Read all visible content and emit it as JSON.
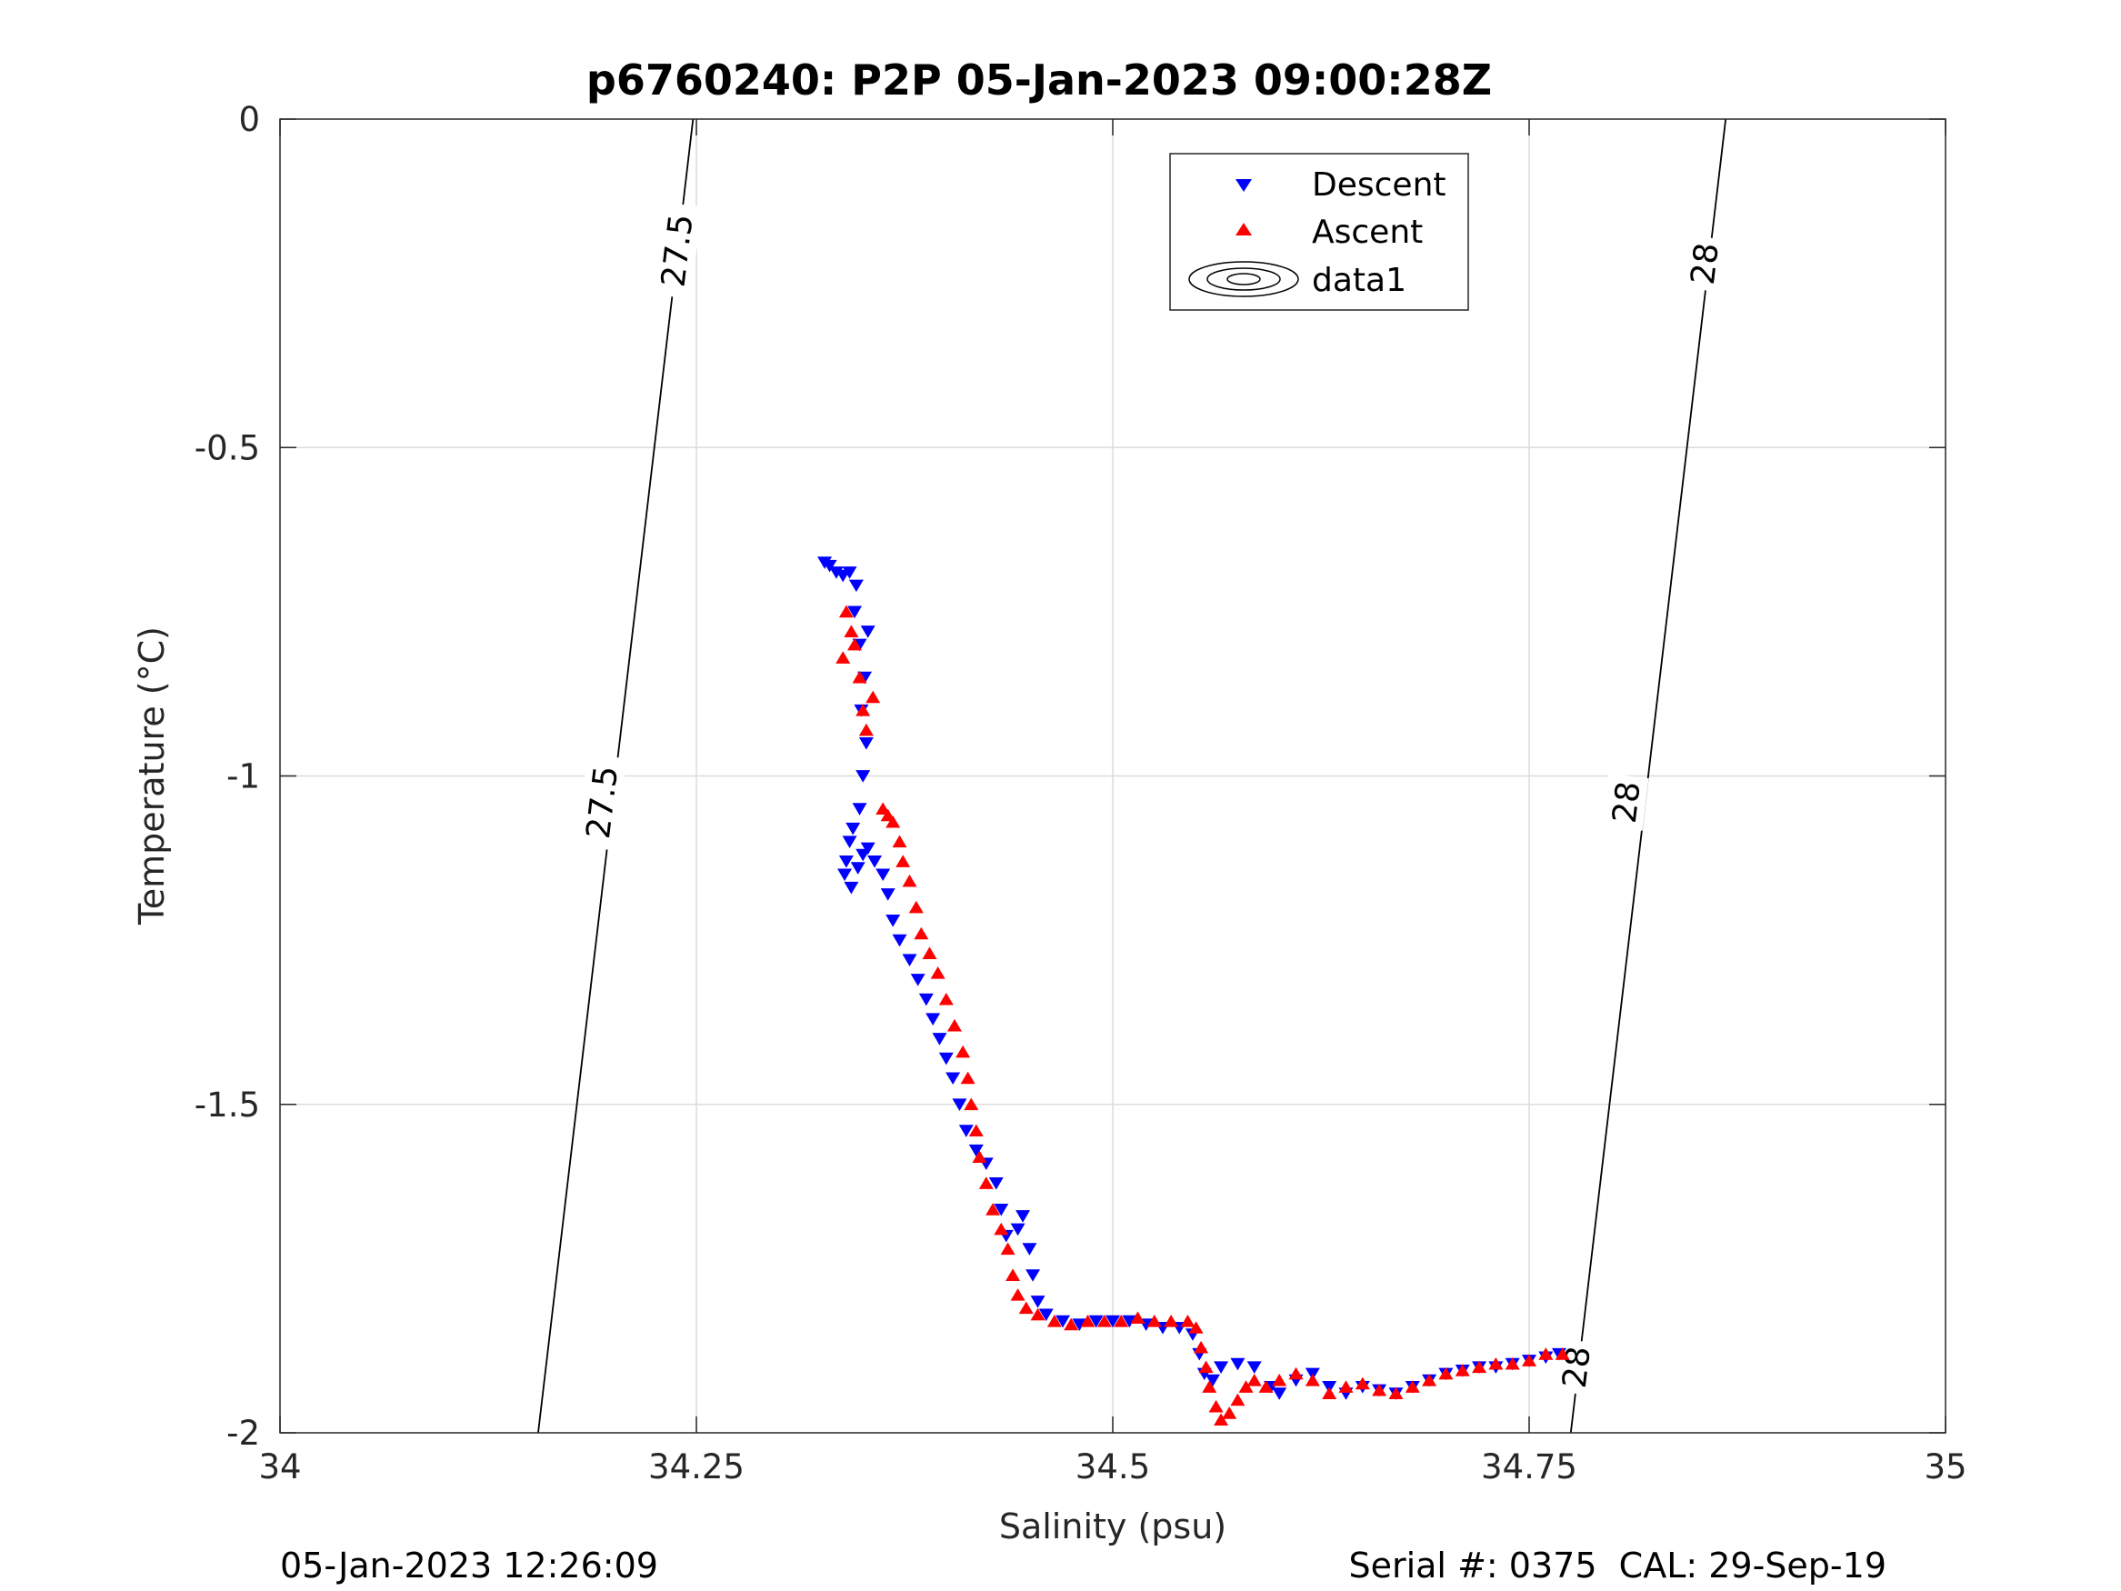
{
  "chart_data": {
    "type": "scatter",
    "title": "p6760240: P2P 05-Jan-2023 09:00:28Z",
    "xlabel": "Salinity (psu)",
    "ylabel": "Temperature (°C)",
    "xlim": [
      34,
      35
    ],
    "ylim": [
      -2,
      0
    ],
    "xticks": [
      34,
      34.25,
      34.5,
      34.75,
      35
    ],
    "xtick_labels": [
      "34",
      "34.25",
      "34.5",
      "34.75",
      "35"
    ],
    "yticks": [
      0,
      -0.5,
      -1,
      -1.5,
      -2
    ],
    "ytick_labels": [
      "0",
      "-0.5",
      "-1",
      "-1.5",
      "-2"
    ],
    "grid": true,
    "legend_position": "top-right",
    "legend": [
      "Descent",
      "Ascent",
      "data1"
    ],
    "series": [
      {
        "name": "Descent",
        "marker": "triangle-down",
        "color": "#0000ff",
        "points": [
          [
            34.327,
            -0.675
          ],
          [
            34.33,
            -0.68
          ],
          [
            34.334,
            -0.69
          ],
          [
            34.338,
            -0.695
          ],
          [
            34.342,
            -0.69
          ],
          [
            34.346,
            -0.71
          ],
          [
            34.345,
            -0.75
          ],
          [
            34.348,
            -0.8
          ],
          [
            34.353,
            -0.78
          ],
          [
            34.351,
            -0.85
          ],
          [
            34.349,
            -0.9
          ],
          [
            34.352,
            -0.95
          ],
          [
            34.35,
            -1.0
          ],
          [
            34.348,
            -1.05
          ],
          [
            34.344,
            -1.08
          ],
          [
            34.342,
            -1.1
          ],
          [
            34.34,
            -1.13
          ],
          [
            34.339,
            -1.15
          ],
          [
            34.343,
            -1.17
          ],
          [
            34.347,
            -1.14
          ],
          [
            34.35,
            -1.12
          ],
          [
            34.353,
            -1.11
          ],
          [
            34.357,
            -1.13
          ],
          [
            34.362,
            -1.15
          ],
          [
            34.365,
            -1.18
          ],
          [
            34.368,
            -1.22
          ],
          [
            34.372,
            -1.25
          ],
          [
            34.378,
            -1.28
          ],
          [
            34.383,
            -1.31
          ],
          [
            34.388,
            -1.34
          ],
          [
            34.392,
            -1.37
          ],
          [
            34.396,
            -1.4
          ],
          [
            34.4,
            -1.43
          ],
          [
            34.404,
            -1.46
          ],
          [
            34.408,
            -1.5
          ],
          [
            34.412,
            -1.54
          ],
          [
            34.418,
            -1.57
          ],
          [
            34.424,
            -1.59
          ],
          [
            34.43,
            -1.62
          ],
          [
            34.433,
            -1.66
          ],
          [
            34.436,
            -1.7
          ],
          [
            34.443,
            -1.69
          ],
          [
            34.446,
            -1.67
          ],
          [
            34.45,
            -1.72
          ],
          [
            34.452,
            -1.76
          ],
          [
            34.455,
            -1.8
          ],
          [
            34.46,
            -1.82
          ],
          [
            34.47,
            -1.83
          ],
          [
            34.48,
            -1.835
          ],
          [
            34.49,
            -1.83
          ],
          [
            34.5,
            -1.83
          ],
          [
            34.51,
            -1.83
          ],
          [
            34.52,
            -1.835
          ],
          [
            34.53,
            -1.84
          ],
          [
            34.54,
            -1.84
          ],
          [
            34.548,
            -1.85
          ],
          [
            34.552,
            -1.88
          ],
          [
            34.555,
            -1.91
          ],
          [
            34.56,
            -1.92
          ],
          [
            34.565,
            -1.9
          ],
          [
            34.575,
            -1.895
          ],
          [
            34.585,
            -1.9
          ],
          [
            34.595,
            -1.93
          ],
          [
            34.6,
            -1.94
          ],
          [
            34.61,
            -1.92
          ],
          [
            34.62,
            -1.91
          ],
          [
            34.63,
            -1.93
          ],
          [
            34.64,
            -1.94
          ],
          [
            34.65,
            -1.93
          ],
          [
            34.66,
            -1.935
          ],
          [
            34.67,
            -1.94
          ],
          [
            34.68,
            -1.93
          ],
          [
            34.69,
            -1.92
          ],
          [
            34.7,
            -1.91
          ],
          [
            34.71,
            -1.905
          ],
          [
            34.72,
            -1.9
          ],
          [
            34.73,
            -1.9
          ],
          [
            34.74,
            -1.895
          ],
          [
            34.75,
            -1.89
          ],
          [
            34.76,
            -1.885
          ],
          [
            34.768,
            -1.88
          ]
        ]
      },
      {
        "name": "Ascent",
        "marker": "triangle-up",
        "color": "#ff0000",
        "points": [
          [
            34.34,
            -0.75
          ],
          [
            34.343,
            -0.78
          ],
          [
            34.338,
            -0.82
          ],
          [
            34.345,
            -0.8
          ],
          [
            34.348,
            -0.85
          ],
          [
            34.35,
            -0.9
          ],
          [
            34.352,
            -0.93
          ],
          [
            34.356,
            -0.88
          ],
          [
            34.362,
            -1.05
          ],
          [
            34.365,
            -1.06
          ],
          [
            34.368,
            -1.07
          ],
          [
            34.372,
            -1.1
          ],
          [
            34.374,
            -1.13
          ],
          [
            34.378,
            -1.16
          ],
          [
            34.382,
            -1.2
          ],
          [
            34.385,
            -1.24
          ],
          [
            34.39,
            -1.27
          ],
          [
            34.395,
            -1.3
          ],
          [
            34.4,
            -1.34
          ],
          [
            34.405,
            -1.38
          ],
          [
            34.41,
            -1.42
          ],
          [
            34.413,
            -1.46
          ],
          [
            34.415,
            -1.5
          ],
          [
            34.418,
            -1.54
          ],
          [
            34.42,
            -1.58
          ],
          [
            34.424,
            -1.62
          ],
          [
            34.428,
            -1.66
          ],
          [
            34.433,
            -1.69
          ],
          [
            34.437,
            -1.72
          ],
          [
            34.44,
            -1.76
          ],
          [
            34.443,
            -1.79
          ],
          [
            34.448,
            -1.81
          ],
          [
            34.455,
            -1.82
          ],
          [
            34.465,
            -1.83
          ],
          [
            34.475,
            -1.835
          ],
          [
            34.485,
            -1.83
          ],
          [
            34.495,
            -1.83
          ],
          [
            34.505,
            -1.83
          ],
          [
            34.515,
            -1.825
          ],
          [
            34.525,
            -1.83
          ],
          [
            34.535,
            -1.83
          ],
          [
            34.545,
            -1.83
          ],
          [
            34.55,
            -1.84
          ],
          [
            34.553,
            -1.87
          ],
          [
            34.556,
            -1.9
          ],
          [
            34.558,
            -1.93
          ],
          [
            34.562,
            -1.96
          ],
          [
            34.565,
            -1.98
          ],
          [
            34.57,
            -1.97
          ],
          [
            34.575,
            -1.95
          ],
          [
            34.58,
            -1.93
          ],
          [
            34.585,
            -1.92
          ],
          [
            34.592,
            -1.93
          ],
          [
            34.6,
            -1.92
          ],
          [
            34.61,
            -1.91
          ],
          [
            34.62,
            -1.92
          ],
          [
            34.63,
            -1.94
          ],
          [
            34.64,
            -1.93
          ],
          [
            34.65,
            -1.925
          ],
          [
            34.66,
            -1.935
          ],
          [
            34.67,
            -1.94
          ],
          [
            34.68,
            -1.93
          ],
          [
            34.69,
            -1.92
          ],
          [
            34.7,
            -1.91
          ],
          [
            34.71,
            -1.905
          ],
          [
            34.72,
            -1.9
          ],
          [
            34.73,
            -1.895
          ],
          [
            34.74,
            -1.895
          ],
          [
            34.75,
            -1.89
          ],
          [
            34.76,
            -1.88
          ],
          [
            34.77,
            -1.88
          ]
        ]
      }
    ],
    "contours": [
      {
        "label": "27.5",
        "points": [
          [
            34.248,
            0
          ],
          [
            34.155,
            -2
          ]
        ],
        "label_positions": [
          [
            34.238,
            -0.2
          ],
          [
            34.193,
            -1.04
          ]
        ]
      },
      {
        "label": "28",
        "points": [
          [
            34.868,
            0
          ],
          [
            34.775,
            -2
          ]
        ],
        "label_positions": [
          [
            34.855,
            -0.22
          ],
          [
            34.808,
            -1.04
          ],
          [
            34.778,
            -1.9
          ]
        ]
      }
    ]
  },
  "footer": {
    "left_text": "05-Jan-2023 12:26:09",
    "right_text": "Serial #: 0375  CAL: 29-Sep-19"
  }
}
